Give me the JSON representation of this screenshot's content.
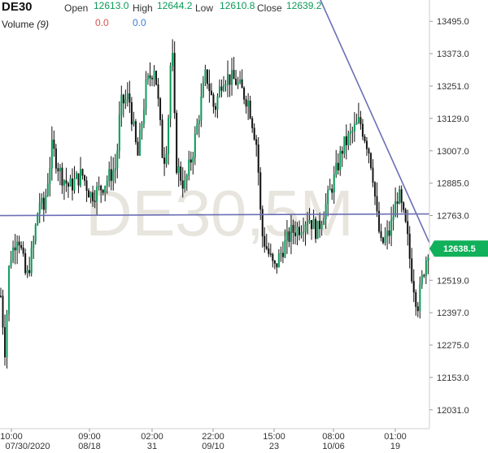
{
  "header": {
    "symbol": "DE30",
    "open_label": "Open",
    "open": "12613.0",
    "high_label": "High",
    "high": "12644.2",
    "low_label": "Low",
    "low": "12610.8",
    "close_label": "Close",
    "close": "12639.2",
    "volume_label": "Volume",
    "volume_period": "(9)",
    "volume_value_1": "0.0",
    "volume_value_2": "0.0"
  },
  "colors": {
    "up": "#0b9b57",
    "down": "#d9534f",
    "body": "#111111",
    "trend": "#6b6fb5",
    "badge": "#11b05a",
    "watermark": "#d8d4c8",
    "vol1": "#d9534f",
    "vol2": "#3b7dd8"
  },
  "watermark": "DE30,5M",
  "chart_data": {
    "type": "candlestick",
    "y_ticks": [
      "13495.0",
      "13373.0",
      "13251.0",
      "13129.0",
      "13007.0",
      "12885.0",
      "12763.0",
      "12641.0",
      "12519.0",
      "12397.0",
      "12275.0",
      "12153.0",
      "12031.0"
    ],
    "ylim": [
      11960,
      13560
    ],
    "x_ticks": [
      {
        "time": "10:00",
        "date": "07/30/2020"
      },
      {
        "time": "09:00",
        "date": "08/18"
      },
      {
        "time": "02:00",
        "date": "31"
      },
      {
        "time": "22:00",
        "date": "09/10"
      },
      {
        "time": "15:00",
        "date": "23"
      },
      {
        "time": "08:00",
        "date": "10/06"
      },
      {
        "time": "01:00",
        "date": "19"
      }
    ],
    "last_price": "12638.5",
    "horizontal_line": 12763,
    "trendline": {
      "from": [
        0.745,
        13580
      ],
      "to": [
        1.0,
        12660
      ]
    },
    "price_path": [
      [
        0,
        12460
      ],
      [
        0.01,
        12250
      ],
      [
        0.02,
        12590
      ],
      [
        0.04,
        12700
      ],
      [
        0.06,
        12520
      ],
      [
        0.075,
        12640
      ],
      [
        0.09,
        12820
      ],
      [
        0.1,
        12780
      ],
      [
        0.12,
        13020
      ],
      [
        0.14,
        12920
      ],
      [
        0.16,
        12870
      ],
      [
        0.19,
        12920
      ],
      [
        0.21,
        12840
      ],
      [
        0.23,
        12860
      ],
      [
        0.25,
        12900
      ],
      [
        0.27,
        12950
      ],
      [
        0.28,
        13180
      ],
      [
        0.3,
        13210
      ],
      [
        0.32,
        12980
      ],
      [
        0.34,
        13250
      ],
      [
        0.36,
        13330
      ],
      [
        0.37,
        13160
      ],
      [
        0.38,
        12960
      ],
      [
        0.39,
        13050
      ],
      [
        0.4,
        13440
      ],
      [
        0.41,
        12960
      ],
      [
        0.43,
        12870
      ],
      [
        0.45,
        13010
      ],
      [
        0.48,
        13300
      ],
      [
        0.5,
        13160
      ],
      [
        0.52,
        13290
      ],
      [
        0.55,
        13270
      ],
      [
        0.58,
        13190
      ],
      [
        0.6,
        13020
      ],
      [
        0.61,
        12700
      ],
      [
        0.62,
        12650
      ],
      [
        0.64,
        12560
      ],
      [
        0.66,
        12640
      ],
      [
        0.68,
        12700
      ],
      [
        0.7,
        12720
      ],
      [
        0.72,
        12760
      ],
      [
        0.74,
        12700
      ],
      [
        0.76,
        12800
      ],
      [
        0.78,
        12900
      ],
      [
        0.8,
        13020
      ],
      [
        0.82,
        13070
      ],
      [
        0.84,
        13120
      ],
      [
        0.86,
        13020
      ],
      [
        0.87,
        12930
      ],
      [
        0.88,
        12760
      ],
      [
        0.89,
        12650
      ],
      [
        0.91,
        12700
      ],
      [
        0.93,
        12850
      ],
      [
        0.95,
        12700
      ],
      [
        0.96,
        12560
      ],
      [
        0.975,
        12420
      ],
      [
        0.99,
        12560
      ],
      [
        1.0,
        12639
      ]
    ]
  }
}
